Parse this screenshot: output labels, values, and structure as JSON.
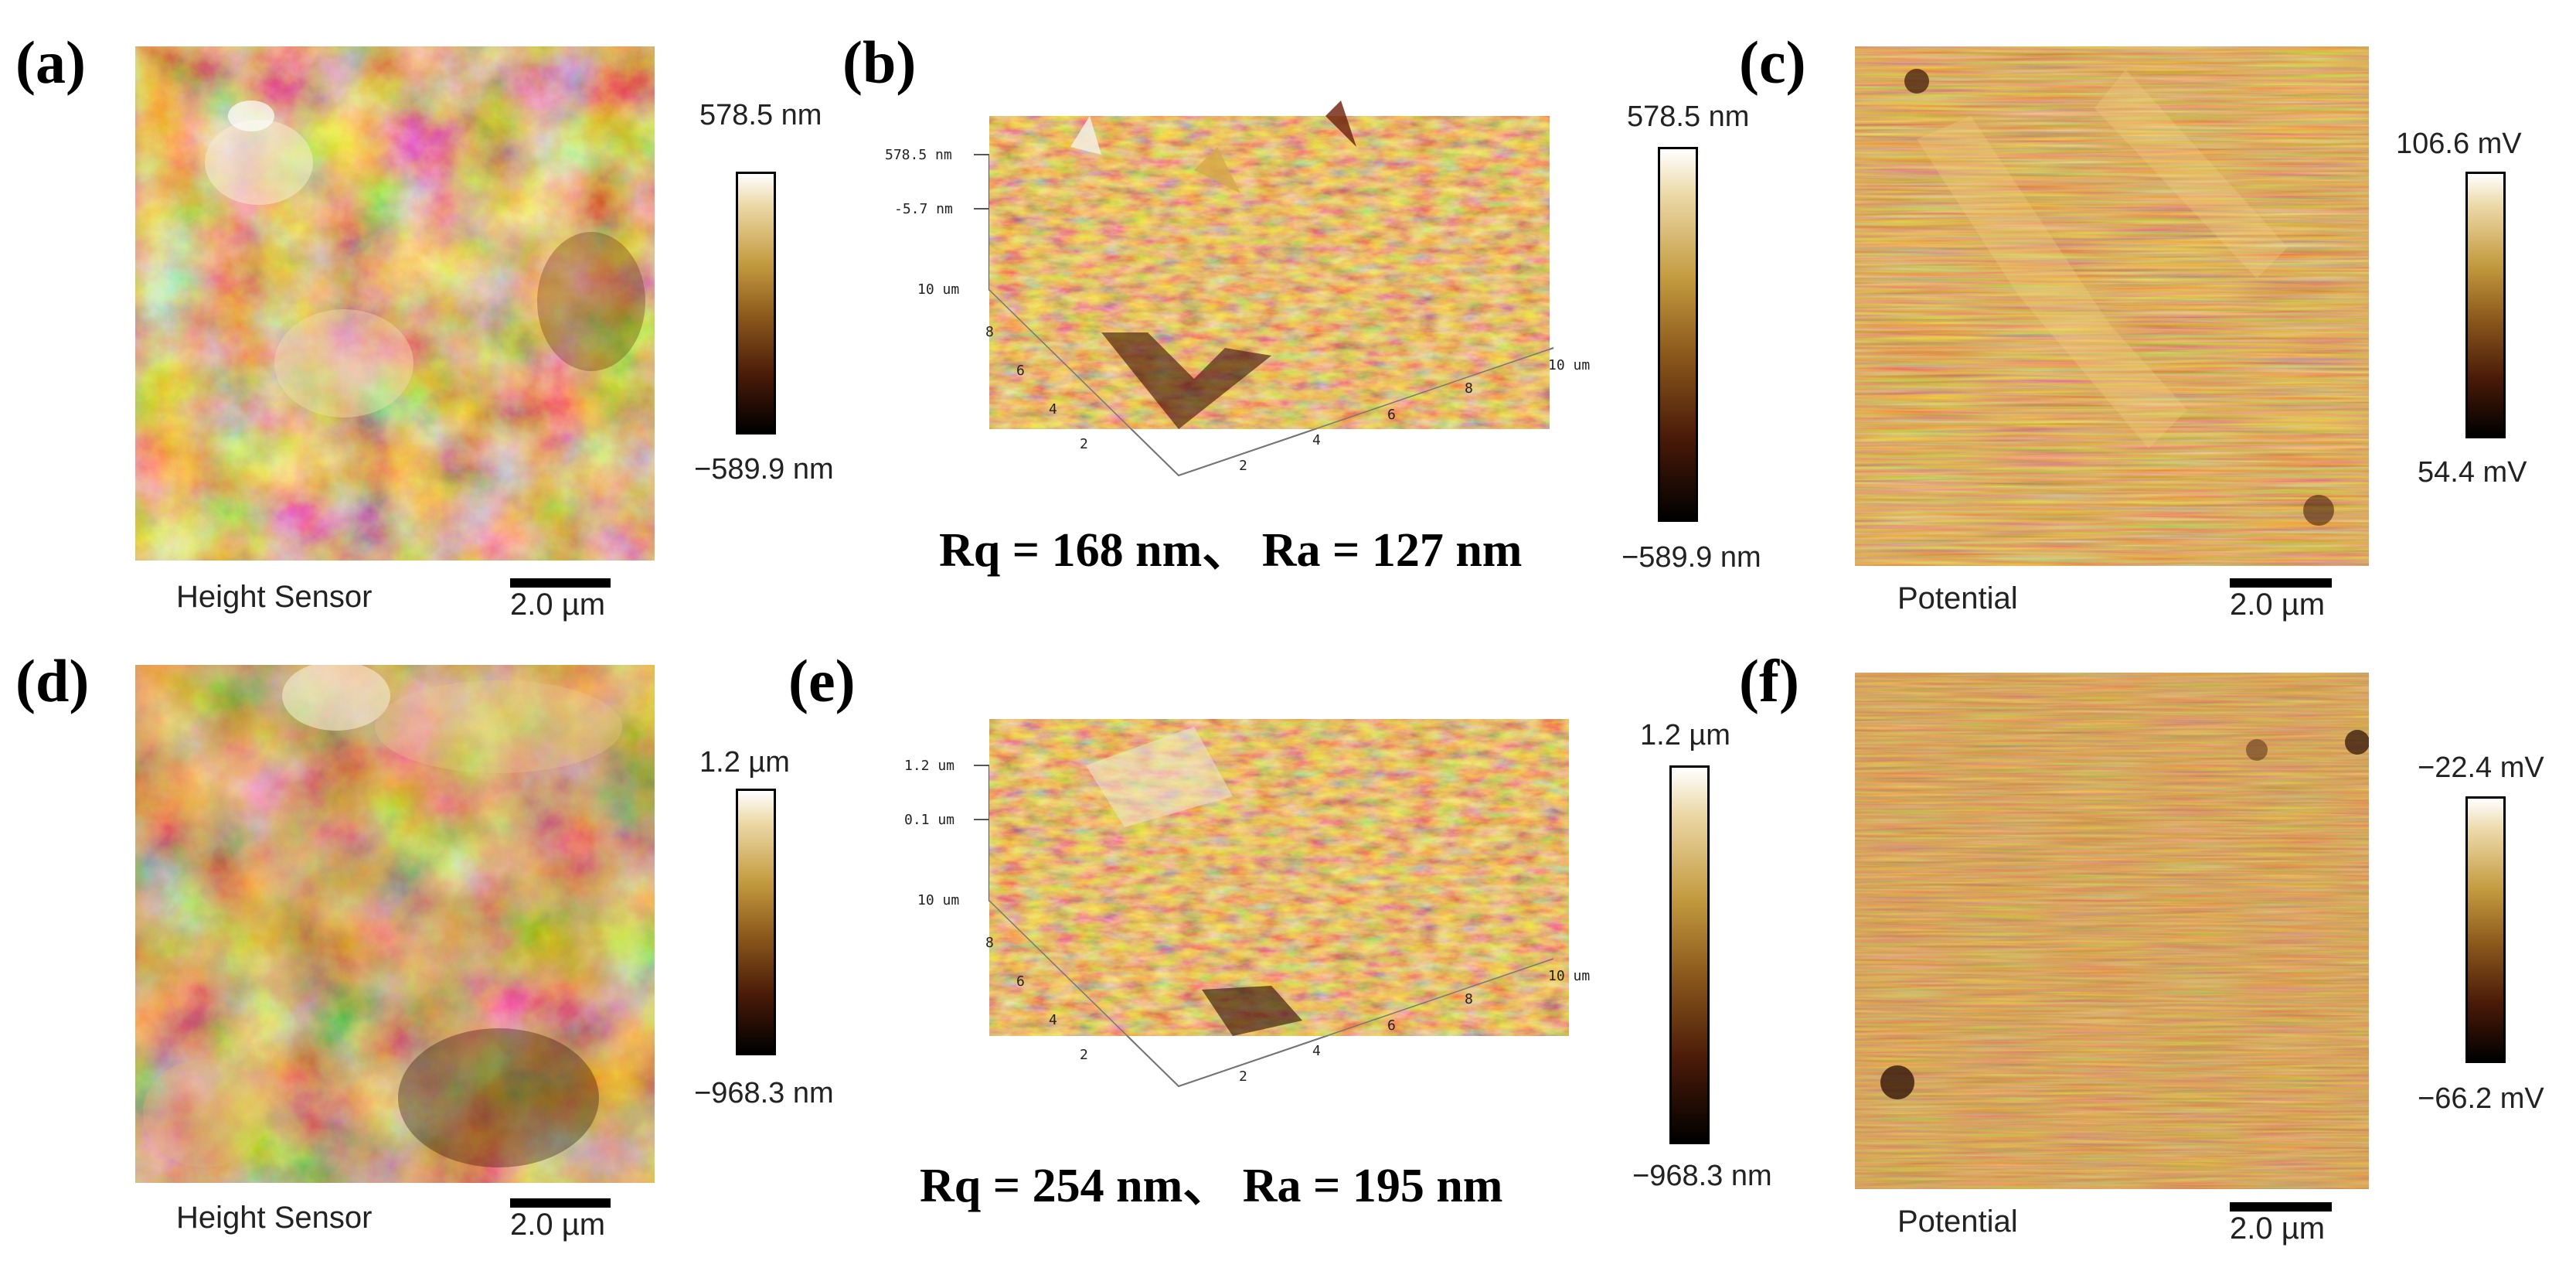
{
  "panels": [
    {
      "label": "(a)",
      "caption": "Height Sensor",
      "scale": "2.0 µm",
      "cb_max": "578.5 nm",
      "cb_min": "−589.9 nm"
    },
    {
      "label": "(b)",
      "roughness": "Rq = 168 nm、  Ra = 127 nm",
      "cb_max": "578.5 nm",
      "cb_min": "−589.9 nm",
      "axis": {
        "ztop": "578.5 nm",
        "zmid": "-5.7 nm",
        "ylab": "10 um",
        "xlab": "10 um",
        "yticks": [
          "8",
          "6",
          "4",
          "2"
        ],
        "xticks": [
          "2",
          "4",
          "6",
          "8"
        ]
      }
    },
    {
      "label": "(c)",
      "caption": "Potential",
      "scale": "2.0 µm",
      "cb_max": "106.6 mV",
      "cb_min": "54.4 mV"
    },
    {
      "label": "(d)",
      "caption": "Height Sensor",
      "scale": "2.0 µm",
      "cb_max": "1.2 µm",
      "cb_min": "−968.3 nm"
    },
    {
      "label": "(e)",
      "roughness": "Rq = 254 nm、  Ra = 195 nm",
      "cb_max": "1.2 µm",
      "cb_min": "−968.3 nm",
      "axis": {
        "ztop": "1.2 um",
        "zmid": "0.1 um",
        "ylab": "10 um",
        "xlab": "10 um",
        "yticks": [
          "8",
          "6",
          "4",
          "2"
        ],
        "xticks": [
          "2",
          "4",
          "6",
          "8"
        ]
      }
    },
    {
      "label": "(f)",
      "caption": "Potential",
      "scale": "2.0 µm",
      "cb_max": "−22.4 mV",
      "cb_min": "−66.2 mV"
    }
  ],
  "colors": {
    "afm_bright": "#f6e6c0",
    "afm_mid": "#b07a2c",
    "afm_dark": "#2a0a02"
  }
}
